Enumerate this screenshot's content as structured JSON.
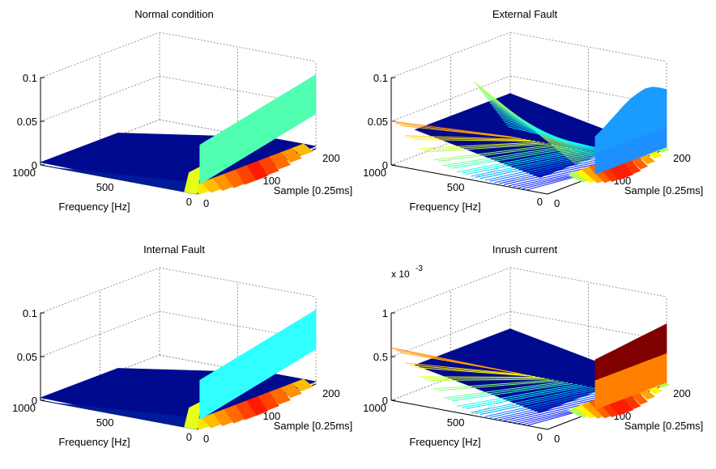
{
  "figure": {
    "panels": [
      {
        "title": "Normal condition",
        "multiplier": "",
        "z_ticks": [
          "0",
          "0.05",
          "0.1"
        ],
        "frequency_ticks": [
          "1000",
          "500",
          "0"
        ],
        "sample_ticks": [
          "0",
          "100",
          "200"
        ],
        "frequency_label": "Frequency [Hz]",
        "sample_label": "Sample [0.25ms]"
      },
      {
        "title": "External Fault",
        "multiplier": "",
        "z_ticks": [
          "0",
          "0.05",
          "0.1"
        ],
        "frequency_ticks": [
          "1000",
          "500",
          "0"
        ],
        "sample_ticks": [
          "0",
          "100",
          "200"
        ],
        "frequency_label": "Frequency [Hz]",
        "sample_label": "Sample [0.25ms]"
      },
      {
        "title": "Internal Fault",
        "multiplier": "",
        "z_ticks": [
          "0",
          "0.05",
          "0.1"
        ],
        "frequency_ticks": [
          "1000",
          "500",
          "0"
        ],
        "sample_ticks": [
          "0",
          "100",
          "200"
        ],
        "frequency_label": "Frequency [Hz]",
        "sample_label": "Sample [0.25ms]"
      },
      {
        "title": "Inrush current",
        "multiplier": "x 10",
        "multiplier_exp": "-3",
        "z_ticks": [
          "0",
          "0.5",
          "1"
        ],
        "frequency_ticks": [
          "1000",
          "500",
          "0"
        ],
        "sample_ticks": [
          "0",
          "100",
          "200"
        ],
        "frequency_label": "Frequency [Hz]",
        "sample_label": "Sample [0.25ms]"
      }
    ]
  },
  "chart_data": [
    {
      "type": "surface",
      "title": "Normal condition",
      "xlabel": "Sample [0.25ms]",
      "ylabel": "Frequency [Hz]",
      "xlim": [
        0,
        200
      ],
      "ylim": [
        0,
        1000
      ],
      "zlim": [
        0,
        0.1
      ],
      "x_ticks": [
        0,
        100,
        200
      ],
      "y_ticks": [
        0,
        500,
        1000
      ],
      "z_ticks": [
        0,
        0.05,
        0.1
      ],
      "grid": true,
      "colormap": "jet",
      "series": [
        {
          "frequency_profile": [
            0.0,
            0.0,
            0.0,
            0.0,
            0.0,
            0.0,
            0.0,
            0.0,
            0.0,
            0.0,
            0.0
          ],
          "sample_profile": [
            0,
            0,
            0,
            0,
            0,
            0,
            0,
            0,
            0,
            0,
            0
          ]
        },
        {
          "frequency_profile": [
            0.052,
            0.052,
            0.052,
            0.052,
            0.052,
            0.052,
            0.052,
            0.052,
            0.052,
            0.052,
            0.052
          ],
          "at_frequency": 0,
          "sample_range": [
            0,
            200
          ]
        }
      ]
    },
    {
      "type": "surface",
      "title": "External Fault",
      "xlabel": "Sample [0.25ms]",
      "ylabel": "Frequency [Hz]",
      "xlim": [
        0,
        200
      ],
      "ylim": [
        0,
        1000
      ],
      "zlim": [
        0,
        0.1
      ],
      "x_ticks": [
        0,
        100,
        200
      ],
      "y_ticks": [
        0,
        500,
        1000
      ],
      "z_ticks": [
        0,
        0.05,
        0.1
      ],
      "grid": true,
      "colormap": "jet",
      "series": [
        {
          "name": "",
          "edge_frequency_1000": [
            0.05,
            0.04,
            0.03,
            0.02,
            0.015,
            0.01,
            0.008,
            0.006,
            0.005,
            0.004,
            0.004
          ]
        },
        {
          "name": "",
          "edge_frequency_0": [
            0.035,
            0.04,
            0.046,
            0.052,
            0.058,
            0.063,
            0.066,
            0.068,
            0.067,
            0.063,
            0.058
          ]
        }
      ]
    },
    {
      "type": "surface",
      "title": "Internal Fault",
      "xlabel": "Sample [0.25ms]",
      "ylabel": "Frequency [Hz]",
      "xlim": [
        0,
        200
      ],
      "ylim": [
        0,
        1000
      ],
      "zlim": [
        0,
        0.1
      ],
      "x_ticks": [
        0,
        100,
        200
      ],
      "y_ticks": [
        0,
        500,
        1000
      ],
      "z_ticks": [
        0,
        0.05,
        0.1
      ],
      "grid": true,
      "colormap": "jet",
      "series": [
        {
          "frequency_profile": [
            0.0,
            0.0,
            0.0,
            0.0,
            0.0,
            0.0,
            0.0,
            0.0,
            0.0,
            0.0,
            0.0
          ]
        },
        {
          "frequency_profile": [
            0.05,
            0.05,
            0.05,
            0.05,
            0.05,
            0.05,
            0.05,
            0.05,
            0.05,
            0.05,
            0.05
          ],
          "at_frequency": 0,
          "sample_range": [
            0,
            200
          ]
        }
      ]
    },
    {
      "type": "surface",
      "title": "Inrush current",
      "xlabel": "Sample [0.25ms]",
      "ylabel": "Frequency [Hz]",
      "xlim": [
        0,
        200
      ],
      "ylim": [
        0,
        1000
      ],
      "zlim": [
        0,
        1
      ],
      "z_multiplier": "x 10^-3",
      "x_ticks": [
        0,
        100,
        200
      ],
      "y_ticks": [
        0,
        500,
        1000
      ],
      "z_ticks": [
        0,
        0.5,
        1
      ],
      "grid": true,
      "colormap": "jet",
      "series": [
        {
          "name": "",
          "edge_frequency_1000": [
            0.6,
            0.5,
            0.4,
            0.3,
            0.2,
            0.12,
            0.06,
            0.03,
            0.02,
            0.015,
            0.01
          ]
        },
        {
          "name": "",
          "edge_frequency_0": [
            0.44,
            0.45,
            0.46,
            0.47,
            0.48,
            0.49,
            0.5,
            0.51,
            0.52,
            0.53,
            0.54
          ]
        }
      ]
    }
  ]
}
